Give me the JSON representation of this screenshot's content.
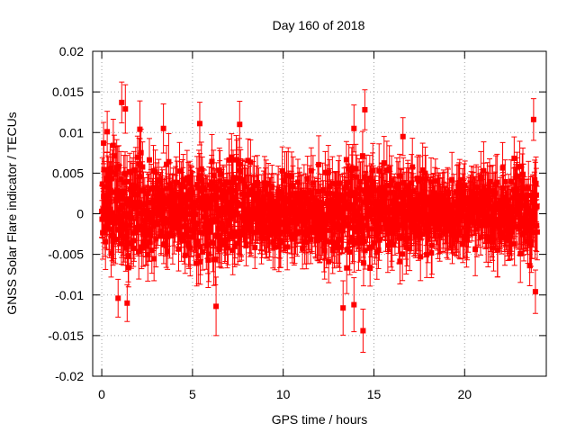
{
  "chart_data": {
    "type": "scatter",
    "title": "Day 160 of 2018",
    "xlabel": "GPS time / hours",
    "ylabel": "GNSS Solar Flare indicator / TECUs",
    "xlim": [
      -0.5,
      24.5
    ],
    "ylim": [
      -0.02,
      0.02
    ],
    "xticks": [
      0,
      5,
      10,
      15,
      20
    ],
    "xtick_labels": [
      "0",
      "5",
      "10",
      "15",
      "20"
    ],
    "yticks": [
      -0.02,
      -0.015,
      -0.01,
      -0.005,
      0,
      0.005,
      0.01,
      0.015,
      0.02
    ],
    "ytick_labels": [
      "-0.02",
      "-0.015",
      "-0.01",
      "-0.005",
      "0",
      "0.005",
      "0.01",
      "0.015",
      "0.02"
    ],
    "grid": true,
    "series": [
      {
        "name": "Solar flare indicator",
        "color": "#ff0000",
        "marker": "square",
        "error_bars": true,
        "x": [
          0.0,
          0.5,
          1.0,
          1.5,
          2.0,
          2.5,
          3.0,
          3.5,
          4.0,
          4.5,
          5.0,
          5.5,
          6.0,
          6.5,
          7.0,
          7.5,
          8.0,
          8.5,
          9.0,
          9.5,
          10.0,
          10.5,
          11.0,
          11.5,
          12.0,
          12.5,
          13.0,
          13.5,
          14.0,
          14.5,
          15.0,
          15.5,
          16.0,
          16.5,
          17.0,
          17.5,
          18.0,
          18.5,
          19.0,
          19.5,
          20.0,
          20.5,
          21.0,
          21.5,
          22.0,
          22.5,
          23.0,
          23.5,
          24.0
        ],
        "y": [
          0.0,
          0.001,
          0.0,
          0.0005,
          0.0,
          0.0005,
          0.001,
          0.0,
          0.0005,
          0.0,
          0.0005,
          0.0,
          0.0005,
          0.0,
          0.0005,
          0.001,
          0.0005,
          0.0,
          0.0005,
          0.0,
          0.0005,
          0.0,
          0.0005,
          0.0,
          0.0,
          0.0005,
          0.0,
          0.0,
          0.0005,
          0.0,
          0.0005,
          0.0,
          0.0005,
          0.0,
          0.0005,
          0.0,
          0.0005,
          0.0,
          0.0005,
          0.0,
          0.0005,
          0.0,
          0.0005,
          0.0,
          0.0005,
          0.0,
          0.0005,
          0.0,
          0.0005
        ],
        "spread": [
          0.0045,
          0.0055,
          0.006,
          0.0055,
          0.0055,
          0.005,
          0.0045,
          0.0045,
          0.0045,
          0.0045,
          0.005,
          0.0055,
          0.006,
          0.0055,
          0.005,
          0.005,
          0.0045,
          0.004,
          0.004,
          0.0035,
          0.0035,
          0.0035,
          0.0035,
          0.0035,
          0.004,
          0.0045,
          0.005,
          0.0055,
          0.006,
          0.006,
          0.005,
          0.005,
          0.0045,
          0.0045,
          0.004,
          0.004,
          0.0035,
          0.0035,
          0.0035,
          0.0035,
          0.0035,
          0.0035,
          0.0035,
          0.0035,
          0.004,
          0.0045,
          0.005,
          0.0055,
          0.0045
        ],
        "peaks": [
          {
            "x": 0.1,
            "y": 0.0087
          },
          {
            "x": 0.3,
            "y": 0.0101
          },
          {
            "x": 1.1,
            "y": 0.0137
          },
          {
            "x": 1.3,
            "y": 0.0129
          },
          {
            "x": 2.1,
            "y": 0.0104
          },
          {
            "x": 3.4,
            "y": 0.0105
          },
          {
            "x": 5.4,
            "y": 0.0111
          },
          {
            "x": 7.6,
            "y": 0.011
          },
          {
            "x": 13.9,
            "y": 0.0105
          },
          {
            "x": 14.5,
            "y": 0.0128
          },
          {
            "x": 16.6,
            "y": 0.0095
          },
          {
            "x": 23.8,
            "y": 0.0116
          },
          {
            "x": 0.9,
            "y": -0.0104
          },
          {
            "x": 1.4,
            "y": -0.011
          },
          {
            "x": 6.3,
            "y": -0.0114
          },
          {
            "x": 13.3,
            "y": -0.0116
          },
          {
            "x": 13.9,
            "y": -0.0112
          },
          {
            "x": 14.4,
            "y": -0.0144
          },
          {
            "x": 23.9,
            "y": -0.0096
          }
        ]
      }
    ]
  }
}
